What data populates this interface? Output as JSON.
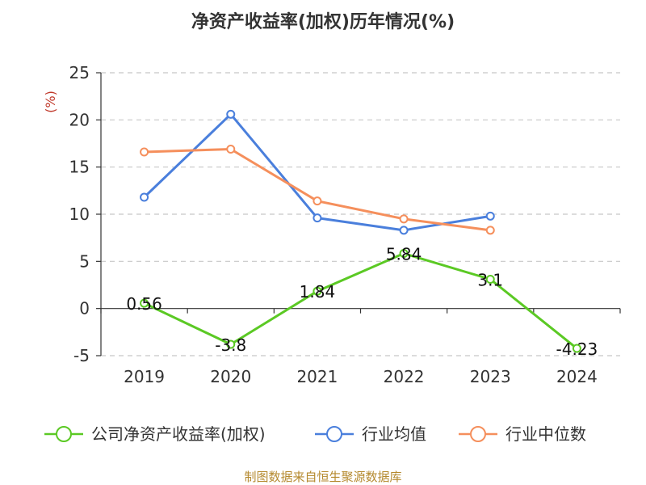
{
  "chart_data": {
    "type": "line",
    "title": "净资产收益率(加权)历年情况(%)",
    "ylabel": "(%)",
    "categories": [
      "2019",
      "2020",
      "2021",
      "2022",
      "2023",
      "2024"
    ],
    "ylim": [
      -5,
      25
    ],
    "yticks": [
      -5,
      0,
      5,
      10,
      15,
      20,
      25
    ],
    "grid": true,
    "legend_position": "bottom",
    "series": [
      {
        "name": "公司净资产收益率(加权)",
        "color": "#5bc924",
        "values": [
          0.56,
          -3.8,
          1.84,
          5.84,
          3.1,
          -4.23
        ],
        "labels": [
          "0.56",
          "-3.8",
          "1.84",
          "5.84",
          "3.1",
          "-4.23"
        ]
      },
      {
        "name": "行业均值",
        "color": "#4a7fdc",
        "values": [
          11.8,
          20.6,
          9.6,
          8.3,
          9.8,
          null
        ]
      },
      {
        "name": "行业中位数",
        "color": "#f58f5c",
        "values": [
          16.6,
          16.9,
          11.4,
          9.5,
          8.3,
          null
        ]
      }
    ]
  },
  "source": "制图数据来自恒生聚源数据库"
}
